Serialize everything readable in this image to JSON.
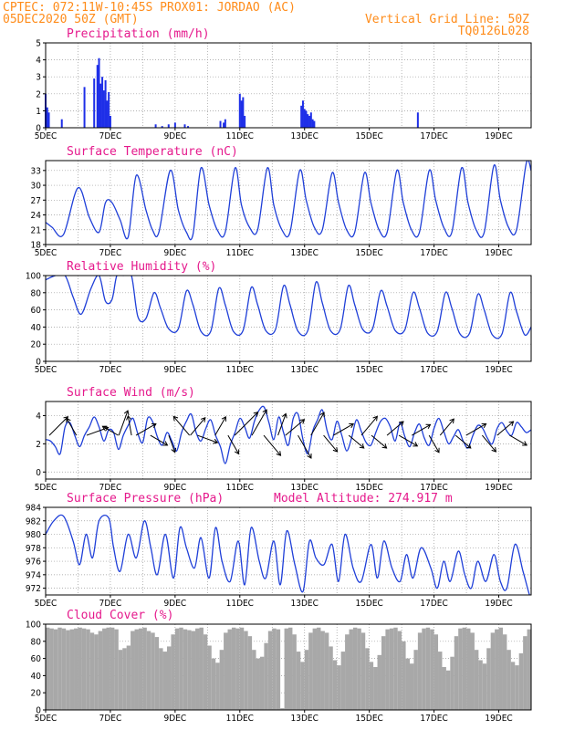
{
  "header": {
    "line1": "CPTEC:   072:11W-10:45S   PROX01: JORDAO (AC)",
    "line2_left": "05DEC2020 50Z (GMT)",
    "line2_right": "Vertical Grid Line: 50Z",
    "line3_right": "TQ0126L028"
  },
  "colors": {
    "header": "#ff8c1a",
    "panel_title": "#e5198c",
    "series": "#1f3fd8",
    "precip_bar": "#1e2fe8",
    "cloud": "#a8a8a8"
  },
  "x_ticks": [
    "5DEC",
    "7DEC",
    "9DEC",
    "11DEC",
    "13DEC",
    "15DEC",
    "17DEC",
    "19DEC"
  ],
  "x_range_days": [
    5,
    20
  ],
  "chart_data": [
    {
      "type": "bar",
      "title": "Precipitation (mm/h)",
      "ylim": [
        0,
        5
      ],
      "yticks": [
        "0",
        "1",
        "2",
        "3",
        "4",
        "5"
      ],
      "x": [
        5.0,
        5.05,
        5.1,
        5.5,
        6.2,
        6.5,
        6.6,
        6.65,
        6.7,
        6.75,
        6.8,
        6.85,
        6.9,
        6.95,
        7.0,
        8.4,
        8.6,
        8.8,
        9.0,
        9.3,
        9.4,
        10.4,
        10.5,
        10.55,
        11.0,
        11.05,
        11.1,
        11.15,
        12.9,
        12.95,
        13.0,
        13.05,
        13.1,
        13.15,
        13.2,
        13.25,
        13.3,
        16.5
      ],
      "values": [
        2.0,
        1.2,
        0.9,
        0.5,
        2.4,
        2.9,
        3.7,
        4.1,
        2.6,
        3.0,
        2.2,
        2.8,
        1.6,
        2.1,
        0.7,
        0.2,
        0.1,
        0.2,
        0.3,
        0.2,
        0.1,
        0.4,
        0.3,
        0.5,
        2.0,
        1.6,
        1.8,
        0.7,
        1.3,
        1.6,
        1.1,
        1.0,
        0.8,
        0.7,
        0.9,
        0.5,
        0.4,
        0.9
      ]
    },
    {
      "type": "line",
      "title": "Surface Temperature (nC)",
      "ylim": [
        18,
        35
      ],
      "yticks": [
        "18",
        "21",
        "24",
        "27",
        "30",
        "33"
      ],
      "x": [
        5.0,
        5.2,
        5.55,
        6.0,
        6.35,
        6.65,
        6.85,
        7.05,
        7.3,
        7.55,
        7.8,
        8.1,
        8.3,
        8.5,
        8.85,
        9.1,
        9.35,
        9.55,
        9.8,
        10.05,
        10.3,
        10.55,
        10.85,
        11.05,
        11.3,
        11.55,
        11.85,
        12.05,
        12.3,
        12.55,
        12.85,
        13.05,
        13.3,
        13.55,
        13.85,
        14.05,
        14.3,
        14.55,
        14.85,
        15.05,
        15.3,
        15.55,
        15.85,
        16.05,
        16.3,
        16.55,
        16.85,
        17.05,
        17.3,
        17.55,
        17.85,
        18.05,
        18.3,
        18.55,
        18.85,
        19.05,
        19.3,
        19.55,
        19.85,
        20.0
      ],
      "values": [
        22.5,
        21.5,
        20.0,
        29.5,
        23.5,
        20.5,
        26.5,
        26.5,
        23.0,
        19.5,
        32.0,
        25.0,
        21.0,
        20.5,
        33.0,
        25.0,
        20.5,
        20.0,
        33.5,
        26.0,
        21.0,
        20.5,
        33.5,
        26.0,
        21.5,
        21.0,
        33.5,
        26.0,
        21.0,
        20.5,
        33.0,
        27.0,
        21.5,
        21.0,
        32.5,
        26.5,
        21.0,
        20.5,
        32.5,
        26.5,
        21.0,
        20.5,
        33.0,
        26.5,
        21.0,
        20.5,
        33.0,
        27.0,
        21.5,
        20.5,
        33.5,
        26.5,
        21.0,
        20.5,
        34.0,
        27.0,
        21.5,
        21.0,
        34.5,
        33.0
      ]
    },
    {
      "type": "line",
      "title": "Relative Humidity (%)",
      "ylim": [
        0,
        100
      ],
      "yticks": [
        "0",
        "20",
        "40",
        "60",
        "80",
        "100"
      ],
      "x": [
        5.0,
        5.3,
        5.6,
        5.85,
        6.1,
        6.4,
        6.65,
        6.85,
        7.05,
        7.2,
        7.4,
        7.65,
        7.85,
        8.1,
        8.35,
        8.55,
        8.8,
        9.1,
        9.35,
        9.55,
        9.8,
        10.1,
        10.35,
        10.55,
        10.8,
        11.1,
        11.35,
        11.55,
        11.8,
        12.1,
        12.35,
        12.55,
        12.8,
        13.1,
        13.35,
        13.55,
        13.8,
        14.1,
        14.35,
        14.55,
        14.8,
        15.1,
        15.35,
        15.55,
        15.8,
        16.1,
        16.35,
        16.55,
        16.8,
        17.1,
        17.35,
        17.55,
        17.8,
        18.1,
        18.35,
        18.55,
        18.8,
        19.1,
        19.35,
        19.55,
        19.8,
        20.0
      ],
      "values": [
        95.0,
        100.0,
        100.0,
        75.0,
        55.0,
        85.0,
        100.0,
        70.0,
        72.0,
        100.0,
        100.0,
        100.0,
        52.0,
        50.0,
        80.0,
        62.0,
        38.0,
        38.0,
        82.0,
        66.0,
        35.0,
        35.0,
        85.0,
        66.0,
        35.0,
        36.0,
        86.0,
        66.0,
        36.0,
        37.0,
        88.0,
        66.0,
        35.0,
        36.0,
        92.0,
        68.0,
        36.0,
        37.0,
        88.0,
        66.0,
        37.0,
        38.0,
        82.0,
        64.0,
        36.0,
        37.0,
        80.0,
        62.0,
        33.0,
        35.0,
        80.0,
        62.0,
        32.0,
        33.0,
        78.0,
        60.0,
        31.0,
        32.0,
        80.0,
        58.0,
        31.0,
        40.0
      ]
    },
    {
      "type": "line",
      "title": "Surface Wind (m/s)",
      "ylim": [
        -0.5,
        5
      ],
      "yticks": [
        "0",
        "2",
        "4"
      ],
      "x": [
        5.0,
        5.15,
        5.3,
        5.45,
        5.6,
        5.75,
        5.9,
        6.05,
        6.2,
        6.35,
        6.5,
        6.65,
        6.8,
        6.95,
        7.1,
        7.25,
        7.4,
        7.55,
        7.7,
        7.85,
        8.0,
        8.15,
        8.3,
        8.45,
        8.6,
        8.75,
        8.9,
        9.05,
        9.2,
        9.35,
        9.5,
        9.65,
        9.8,
        9.95,
        10.1,
        10.25,
        10.4,
        10.55,
        10.7,
        10.85,
        11.0,
        11.15,
        11.3,
        11.45,
        11.6,
        11.75,
        11.9,
        12.05,
        12.2,
        12.35,
        12.5,
        12.65,
        12.8,
        12.95,
        13.1,
        13.25,
        13.4,
        13.55,
        13.7,
        13.85,
        14.0,
        14.15,
        14.3,
        14.45,
        14.6,
        14.75,
        14.9,
        15.05,
        15.2,
        15.35,
        15.5,
        15.65,
        15.8,
        15.95,
        16.1,
        16.25,
        16.4,
        16.55,
        16.7,
        16.85,
        17.0,
        17.15,
        17.3,
        17.45,
        17.6,
        17.75,
        17.9,
        18.05,
        18.2,
        18.35,
        18.5,
        18.65,
        18.8,
        18.95,
        19.1,
        19.25,
        19.4,
        19.55,
        19.7,
        19.85,
        20.0
      ],
      "values": [
        2.3,
        2.2,
        1.8,
        1.3,
        3.2,
        3.5,
        2.6,
        1.8,
        2.6,
        3.2,
        3.9,
        3.2,
        2.2,
        3.0,
        2.8,
        1.6,
        2.6,
        3.3,
        3.8,
        2.7,
        2.1,
        3.8,
        3.6,
        2.5,
        1.9,
        2.8,
        2.2,
        1.5,
        2.8,
        3.6,
        4.1,
        2.8,
        2.2,
        3.1,
        3.7,
        2.6,
        1.8,
        0.6,
        1.9,
        2.8,
        3.8,
        3.2,
        2.4,
        3.6,
        4.4,
        4.6,
        3.5,
        2.3,
        3.9,
        2.8,
        1.9,
        3.8,
        4.1,
        2.3,
        1.3,
        2.9,
        3.7,
        4.4,
        2.9,
        2.3,
        3.6,
        2.6,
        1.5,
        2.4,
        3.7,
        2.9,
        2.1,
        1.9,
        2.8,
        3.6,
        3.8,
        3.2,
        2.2,
        3.5,
        2.5,
        1.8,
        2.8,
        3.4,
        2.4,
        1.9,
        3.1,
        3.8,
        2.9,
        2.0,
        2.5,
        3.0,
        2.2,
        1.7,
        2.6,
        3.3,
        3.1,
        2.4,
        2.0,
        3.1,
        3.5,
        2.9,
        2.6,
        3.5,
        3.2,
        2.8,
        3.0
      ]
    },
    {
      "type": "line",
      "title": "Surface Pressure (hPa)",
      "annotation": "Model Altitude: 274.917 m",
      "ylim": [
        971,
        984
      ],
      "yticks": [
        "972",
        "974",
        "976",
        "978",
        "980",
        "982",
        "984"
      ],
      "x": [
        5.0,
        5.25,
        5.55,
        5.85,
        6.05,
        6.25,
        6.45,
        6.65,
        6.95,
        7.1,
        7.3,
        7.55,
        7.8,
        8.05,
        8.25,
        8.45,
        8.7,
        8.95,
        9.15,
        9.35,
        9.6,
        9.8,
        10.05,
        10.25,
        10.45,
        10.7,
        10.95,
        11.15,
        11.35,
        11.6,
        11.8,
        12.05,
        12.25,
        12.45,
        12.7,
        12.95,
        13.15,
        13.35,
        13.6,
        13.85,
        14.05,
        14.25,
        14.5,
        14.75,
        15.05,
        15.25,
        15.45,
        15.7,
        15.95,
        16.15,
        16.35,
        16.6,
        16.9,
        17.1,
        17.3,
        17.5,
        17.75,
        17.95,
        18.15,
        18.35,
        18.6,
        18.85,
        19.05,
        19.25,
        19.5,
        19.75,
        19.95,
        20.0
      ],
      "values": [
        980.0,
        982.0,
        982.7,
        979.0,
        975.5,
        980.0,
        976.5,
        982.0,
        982.4,
        978.0,
        974.5,
        980.0,
        976.5,
        982.0,
        978.0,
        974.0,
        980.0,
        973.5,
        981.0,
        978.0,
        975.0,
        979.5,
        973.5,
        981.0,
        976.0,
        973.0,
        979.0,
        972.5,
        981.0,
        976.0,
        973.5,
        979.0,
        972.5,
        980.5,
        975.5,
        971.5,
        979.0,
        976.5,
        975.5,
        978.5,
        973.0,
        980.0,
        975.0,
        973.0,
        978.5,
        973.5,
        979.0,
        975.0,
        973.0,
        977.0,
        973.5,
        978.0,
        975.0,
        972.0,
        976.0,
        973.0,
        977.5,
        974.0,
        972.0,
        976.0,
        973.0,
        977.0,
        973.0,
        972.0,
        978.5,
        974.5,
        971.0,
        971.0
      ]
    },
    {
      "type": "bar",
      "title": "Cloud Cover (%)",
      "ylim": [
        0,
        100
      ],
      "yticks": [
        "0",
        "20",
        "40",
        "60",
        "80",
        "100"
      ],
      "x_step_days": 0.125,
      "values": [
        96,
        95,
        94,
        96,
        95,
        93,
        94,
        95,
        96,
        95,
        94,
        90,
        88,
        92,
        95,
        96,
        96,
        94,
        70,
        72,
        75,
        92,
        94,
        95,
        96,
        92,
        90,
        85,
        72,
        68,
        74,
        88,
        95,
        96,
        94,
        93,
        92,
        95,
        96,
        88,
        75,
        60,
        55,
        70,
        90,
        94,
        96,
        95,
        96,
        92,
        86,
        70,
        60,
        62,
        78,
        92,
        95,
        94,
        2,
        95,
        96,
        88,
        68,
        56,
        70,
        90,
        95,
        96,
        92,
        90,
        74,
        58,
        52,
        68,
        88,
        94,
        96,
        95,
        90,
        72,
        56,
        50,
        64,
        86,
        94,
        95,
        96,
        92,
        80,
        60,
        54,
        70,
        90,
        95,
        96,
        94,
        88,
        68,
        50,
        46,
        62,
        86,
        95,
        96,
        95,
        90,
        70,
        58,
        54,
        72,
        90,
        94,
        96,
        88,
        70,
        56,
        52,
        66,
        86,
        94,
        5
      ]
    }
  ]
}
